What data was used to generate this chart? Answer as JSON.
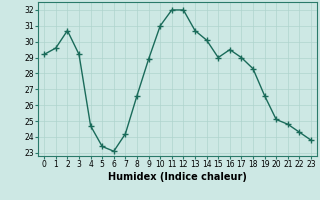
{
  "x": [
    0,
    1,
    2,
    3,
    4,
    5,
    6,
    7,
    8,
    9,
    10,
    11,
    12,
    13,
    14,
    15,
    16,
    17,
    18,
    19,
    20,
    21,
    22,
    23
  ],
  "y": [
    29.2,
    29.6,
    30.7,
    29.2,
    24.7,
    23.4,
    23.1,
    24.2,
    26.6,
    28.9,
    31.0,
    32.0,
    32.0,
    30.7,
    30.1,
    29.0,
    29.5,
    29.0,
    28.3,
    26.6,
    25.1,
    24.8,
    24.3,
    23.8
  ],
  "line_color": "#1a6b5a",
  "marker": "+",
  "marker_size": 4,
  "bg_color": "#cde8e4",
  "grid_color": "#afd4ce",
  "xlabel": "Humidex (Indice chaleur)",
  "ylim": [
    22.8,
    32.5
  ],
  "xlim": [
    -0.5,
    23.5
  ],
  "yticks": [
    23,
    24,
    25,
    26,
    27,
    28,
    29,
    30,
    31,
    32
  ],
  "xticks": [
    0,
    1,
    2,
    3,
    4,
    5,
    6,
    7,
    8,
    9,
    10,
    11,
    12,
    13,
    14,
    15,
    16,
    17,
    18,
    19,
    20,
    21,
    22,
    23
  ],
  "tick_fontsize": 5.5,
  "xlabel_fontsize": 7,
  "spine_color": "#2a7a6a",
  "line_width": 1.0,
  "marker_edge_width": 1.0
}
